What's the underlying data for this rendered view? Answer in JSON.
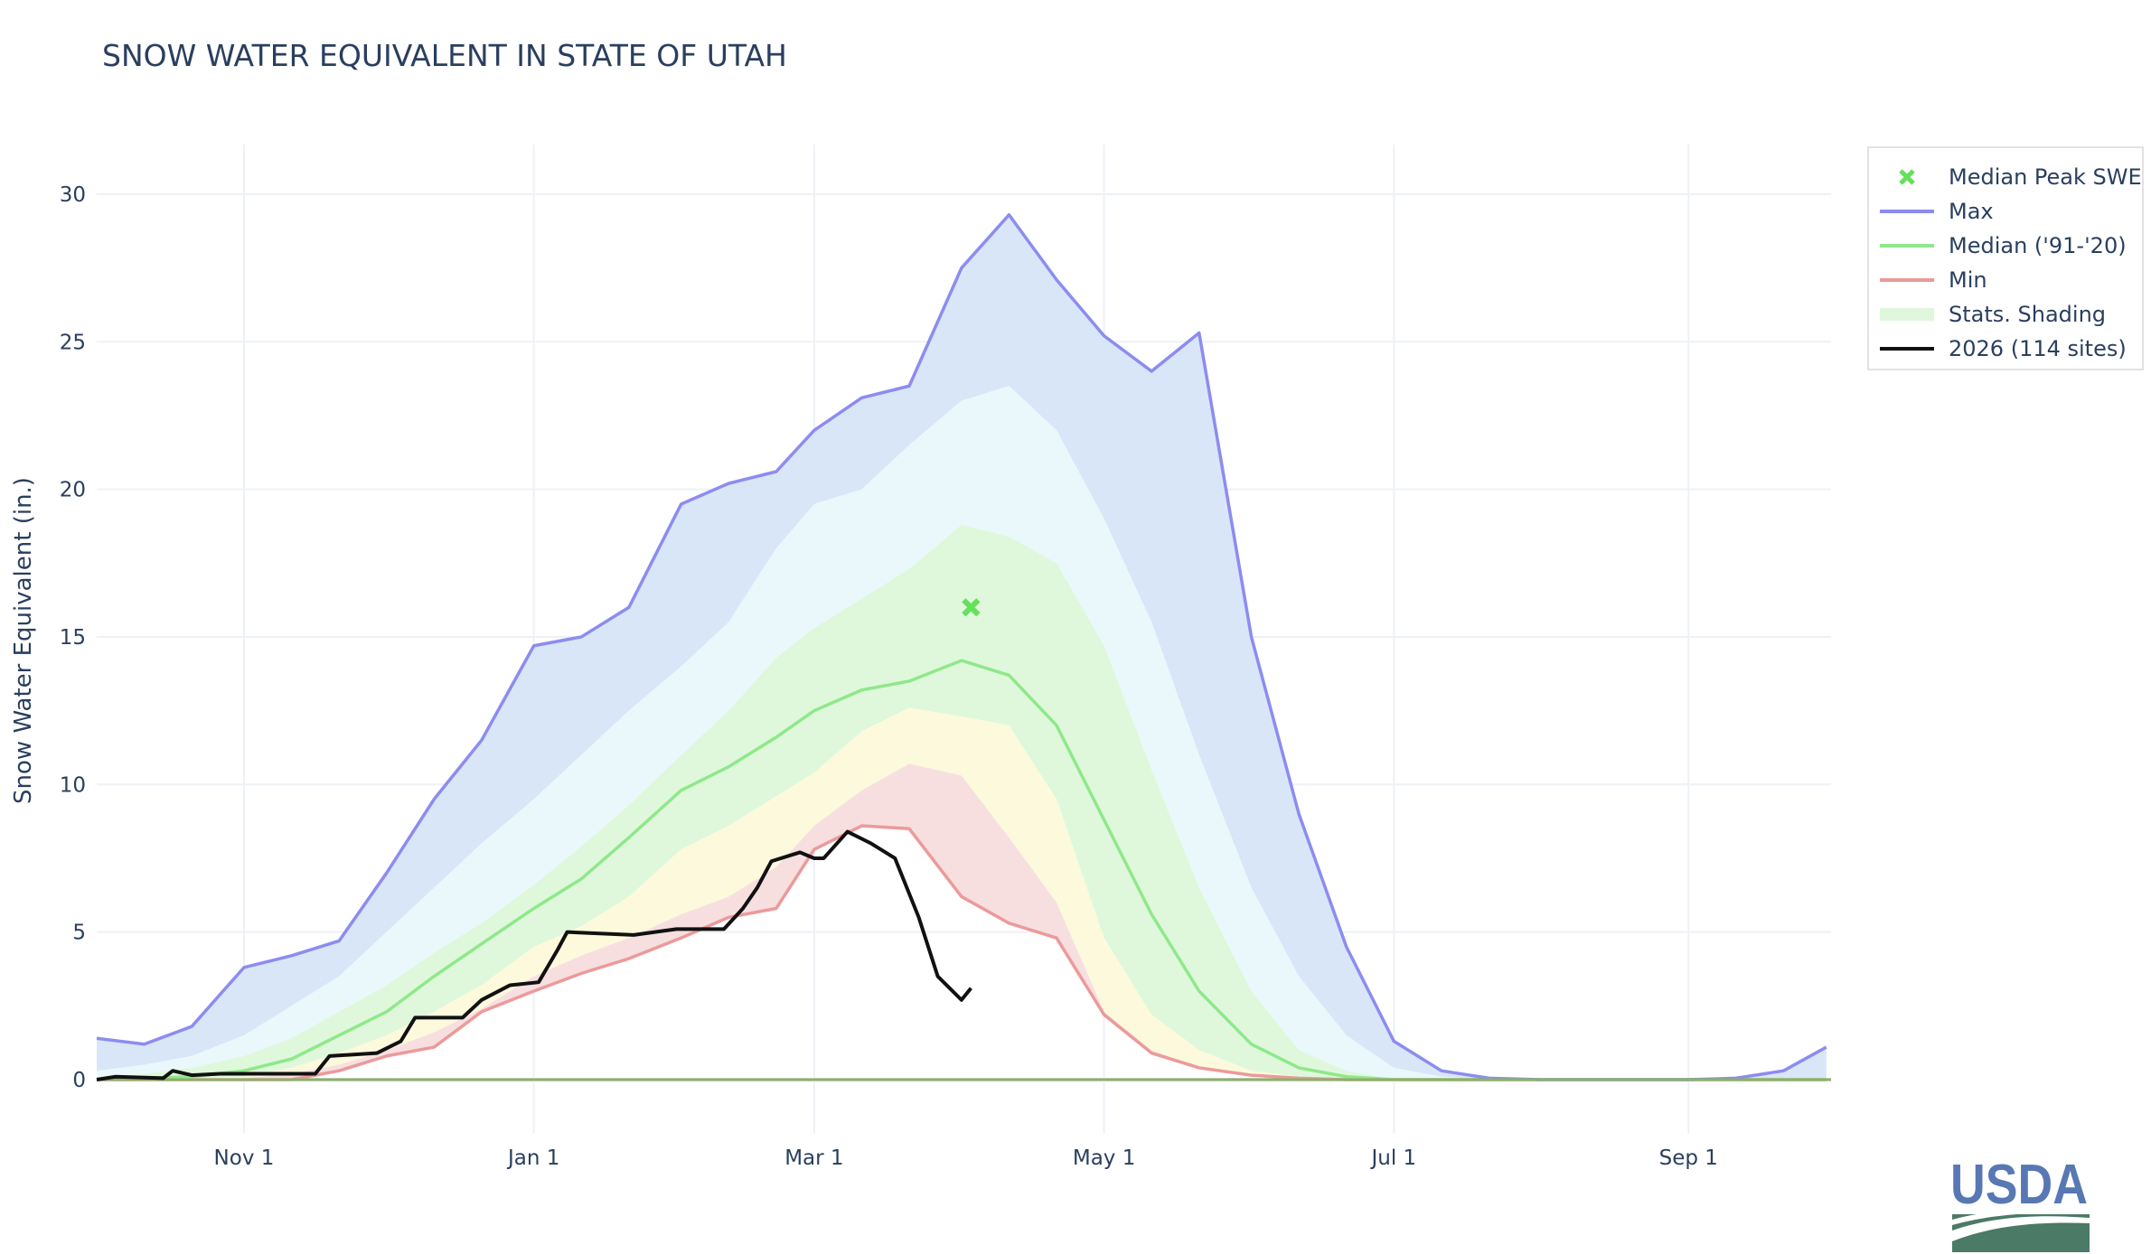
{
  "title": "SNOW WATER EQUIVALENT IN STATE OF UTAH",
  "chart_data": {
    "type": "area",
    "title": "SNOW WATER EQUIVALENT IN STATE OF UTAH",
    "xlabel": "",
    "ylabel": "Snow Water Equivalent (in.)",
    "xlim": [
      "10-01",
      "09-30"
    ],
    "ylim": [
      -1.8,
      32
    ],
    "yticks": [
      0,
      5,
      10,
      15,
      20,
      25,
      30
    ],
    "xticks": [
      {
        "date": "11-01",
        "label": "Nov  1"
      },
      {
        "date": "01-01",
        "label": "Jan  1"
      },
      {
        "date": "03-01",
        "label": "Mar  1"
      },
      {
        "date": "05-01",
        "label": "May  1"
      },
      {
        "date": "07-01",
        "label": "Jul  1"
      },
      {
        "date": "09-01",
        "label": "Sep  1"
      }
    ],
    "grid": true,
    "legend_position": "top-right",
    "colors": {
      "max": "#8c8cf0",
      "median": "#8fe88a",
      "min": "#ec9a9a",
      "current": "#111111",
      "peak_marker": "#66e05a",
      "band_max_90": "#d9e6f8",
      "band_90_70": "#eaf8fb",
      "band_70_30": "#dff8dc",
      "band_30_10": "#fcf9dc",
      "band_10_min": "#f7dfe0",
      "zero_line": "#8db06a"
    },
    "dates": [
      "10-01",
      "10-11",
      "10-21",
      "11-01",
      "11-11",
      "11-21",
      "12-01",
      "12-11",
      "12-21",
      "01-01",
      "01-11",
      "01-21",
      "02-01",
      "02-11",
      "02-21",
      "03-01",
      "03-11",
      "03-21",
      "04-01",
      "04-11",
      "04-21",
      "05-01",
      "05-11",
      "05-21",
      "06-01",
      "06-11",
      "06-21",
      "07-01",
      "07-11",
      "07-21",
      "08-01",
      "08-15",
      "09-01",
      "09-11",
      "09-21",
      "09-30"
    ],
    "series": [
      {
        "name": "Max",
        "key": "max",
        "values": [
          1.4,
          1.2,
          1.8,
          3.8,
          4.2,
          4.7,
          7.0,
          9.5,
          11.5,
          14.7,
          15.0,
          16.0,
          19.5,
          20.2,
          20.6,
          22.0,
          23.1,
          23.5,
          27.5,
          29.3,
          27.1,
          25.2,
          24.0,
          25.3,
          15.0,
          9.0,
          4.5,
          1.3,
          0.3,
          0.05,
          0,
          0,
          0,
          0.05,
          0.3,
          1.1
        ]
      },
      {
        "key": "p90",
        "values": [
          0.3,
          0.5,
          0.8,
          1.5,
          2.5,
          3.5,
          5.0,
          6.5,
          8.0,
          9.5,
          11.0,
          12.5,
          14.0,
          15.5,
          18.0,
          19.5,
          20.0,
          21.5,
          23.0,
          23.5,
          22.0,
          19.0,
          15.5,
          11.0,
          6.5,
          3.5,
          1.5,
          0.4,
          0.1,
          0,
          0,
          0,
          0,
          0,
          0,
          0
        ]
      },
      {
        "key": "p70",
        "values": [
          0.05,
          0.2,
          0.4,
          0.8,
          1.4,
          2.3,
          3.2,
          4.3,
          5.3,
          6.6,
          7.9,
          9.3,
          11.0,
          12.5,
          14.3,
          15.3,
          16.3,
          17.3,
          18.8,
          18.4,
          17.5,
          14.7,
          10.5,
          6.5,
          3.0,
          1.0,
          0.3,
          0,
          0,
          0,
          0,
          0,
          0,
          0,
          0,
          0
        ]
      },
      {
        "name": "Median ('91-'20)",
        "key": "median",
        "values": [
          0,
          0.05,
          0.1,
          0.3,
          0.7,
          1.5,
          2.3,
          3.5,
          4.6,
          5.8,
          6.8,
          8.2,
          9.8,
          10.6,
          11.6,
          12.5,
          13.2,
          13.5,
          14.2,
          13.7,
          12.0,
          8.8,
          5.6,
          3.0,
          1.2,
          0.4,
          0.1,
          0,
          0,
          0,
          0,
          0,
          0,
          0,
          0,
          0
        ]
      },
      {
        "key": "p30",
        "values": [
          0,
          0,
          0.05,
          0.1,
          0.4,
          0.9,
          1.5,
          2.3,
          3.2,
          4.5,
          5.2,
          6.2,
          7.8,
          8.6,
          9.6,
          10.4,
          11.8,
          12.6,
          12.3,
          12.0,
          9.5,
          4.8,
          2.2,
          1.0,
          0.3,
          0.1,
          0,
          0,
          0,
          0,
          0,
          0,
          0,
          0,
          0,
          0
        ]
      },
      {
        "key": "p10",
        "values": [
          0,
          0,
          0,
          0.05,
          0.2,
          0.5,
          1.0,
          1.6,
          2.4,
          3.5,
          4.2,
          4.8,
          5.6,
          6.2,
          7.2,
          8.6,
          9.8,
          10.7,
          10.3,
          8.2,
          6.0,
          2.3,
          1.0,
          0.4,
          0.1,
          0,
          0,
          0,
          0,
          0,
          0,
          0,
          0,
          0,
          0,
          0
        ]
      },
      {
        "name": "Min",
        "key": "min",
        "values": [
          0,
          0,
          0,
          0,
          0,
          0.3,
          0.8,
          1.1,
          2.3,
          3.0,
          3.6,
          4.1,
          4.8,
          5.5,
          5.8,
          7.8,
          8.6,
          8.5,
          6.2,
          5.3,
          4.8,
          2.2,
          0.9,
          0.4,
          0.15,
          0.05,
          0,
          0,
          0,
          0,
          0,
          0,
          0,
          0,
          0,
          0
        ]
      }
    ],
    "current": {
      "name": "2026 (114 sites)",
      "dates": [
        "10-01",
        "10-05",
        "10-15",
        "10-17",
        "10-21",
        "10-27",
        "11-16",
        "11-19",
        "11-29",
        "12-04",
        "12-07",
        "12-17",
        "12-21",
        "12-27",
        "01-02",
        "01-06",
        "01-08",
        "01-22",
        "01-31",
        "02-10",
        "02-14",
        "02-17",
        "02-20",
        "02-24",
        "02-26",
        "03-01",
        "03-03",
        "03-08",
        "03-13",
        "03-18",
        "03-23",
        "03-27",
        "04-01",
        "04-03"
      ],
      "values": [
        0,
        0.1,
        0.05,
        0.3,
        0.15,
        0.2,
        0.2,
        0.8,
        0.9,
        1.3,
        2.1,
        2.1,
        2.7,
        3.2,
        3.3,
        4.4,
        5.0,
        4.9,
        5.1,
        5.1,
        5.8,
        6.5,
        7.4,
        7.6,
        7.7,
        7.5,
        7.5,
        8.4,
        8.0,
        7.5,
        5.5,
        3.5,
        2.7,
        3.1
      ]
    },
    "median_peak": {
      "name": "Median Peak SWE",
      "date": "04-03",
      "value": 16.0
    },
    "legend": [
      {
        "label": "Median Peak SWE",
        "symbol": "x-marker",
        "color": "#66e05a"
      },
      {
        "label": "Max",
        "symbol": "line",
        "color": "#8c8cf0"
      },
      {
        "label": "Median ('91-'20)",
        "symbol": "line",
        "color": "#8fe88a"
      },
      {
        "label": "Min",
        "symbol": "line",
        "color": "#ec9a9a"
      },
      {
        "label": "Stats. Shading",
        "symbol": "box",
        "color": "#dff8dc"
      },
      {
        "label": "2026 (114 sites)",
        "symbol": "line",
        "color": "#111111"
      }
    ]
  },
  "logo": {
    "text": "USDA",
    "color_text": "#5878b4",
    "color_field": "#4b7a66"
  }
}
